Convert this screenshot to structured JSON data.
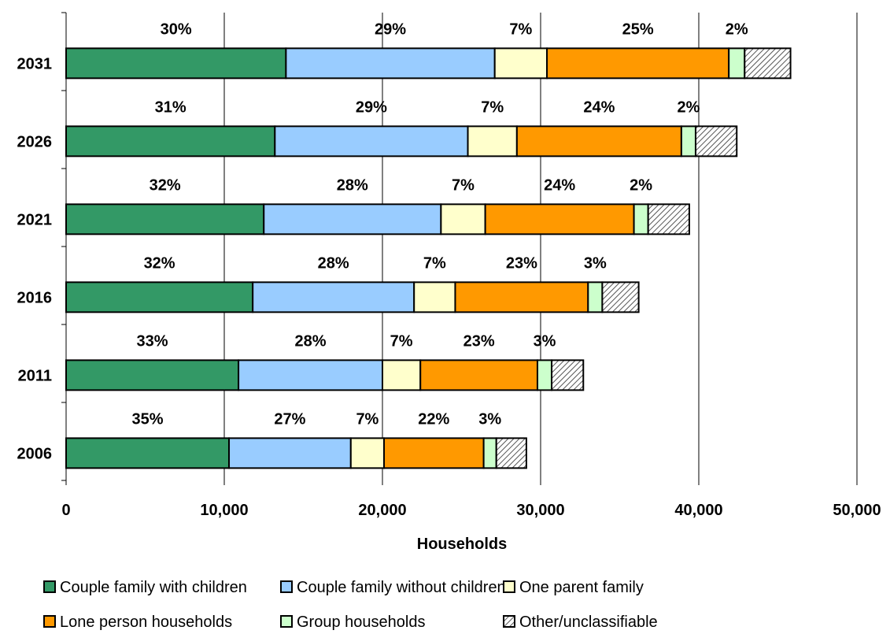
{
  "chart_data": {
    "type": "bar",
    "orientation": "horizontal",
    "stacked": true,
    "categories": [
      "2031",
      "2026",
      "2021",
      "2016",
      "2011",
      "2006"
    ],
    "series": [
      {
        "name": "Couple family with children",
        "color": "#339966",
        "values": [
          13900,
          13200,
          12500,
          11800,
          10900,
          10300
        ],
        "labels": [
          "30%",
          "31%",
          "32%",
          "32%",
          "33%",
          "35%"
        ]
      },
      {
        "name": "Couple family without children",
        "color": "#99ccff",
        "values": [
          13200,
          12200,
          11200,
          10200,
          9100,
          7700
        ],
        "labels": [
          "29%",
          "29%",
          "28%",
          "28%",
          "28%",
          "27%"
        ]
      },
      {
        "name": "One parent family",
        "color": "#ffffcc",
        "values": [
          3300,
          3100,
          2800,
          2600,
          2400,
          2100
        ],
        "labels": [
          "7%",
          "7%",
          "7%",
          "7%",
          "7%",
          "7%"
        ]
      },
      {
        "name": "Lone person households",
        "color": "#ff9900",
        "values": [
          11500,
          10400,
          9400,
          8400,
          7400,
          6300
        ],
        "labels": [
          "25%",
          "24%",
          "24%",
          "23%",
          "23%",
          "22%"
        ]
      },
      {
        "name": "Group households",
        "color": "#ccffcc",
        "values": [
          1000,
          900,
          900,
          900,
          900,
          800
        ],
        "labels": [
          "2%",
          "2%",
          "2%",
          "3%",
          "3%",
          "3%"
        ]
      },
      {
        "name": "Other/unclassifiable",
        "color": "#ffffff",
        "pattern": "hatch",
        "values": [
          2900,
          2600,
          2600,
          2300,
          2000,
          1900
        ],
        "labels": []
      }
    ],
    "xlim": [
      0,
      50000
    ],
    "xticks": [
      0,
      10000,
      20000,
      30000,
      40000,
      50000
    ],
    "xtick_labels": [
      "0",
      "10,000",
      "20,000",
      "30,000",
      "40,000",
      "50,000"
    ],
    "xlabel": "Households",
    "ylabel": "",
    "title": "",
    "grid": "vertical",
    "legend": "bottom"
  }
}
